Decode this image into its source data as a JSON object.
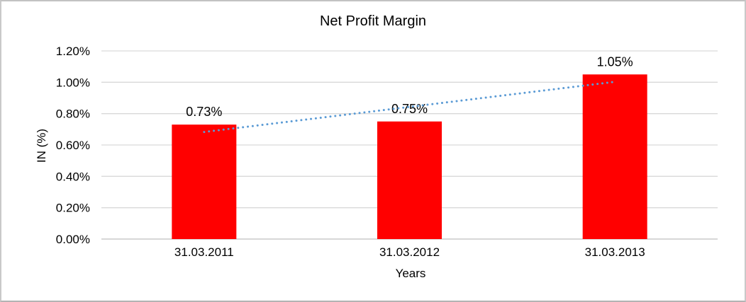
{
  "chart_data": {
    "type": "bar",
    "title": "Net Profit Margin",
    "xlabel": "Years",
    "ylabel": "IN (%)",
    "categories": [
      "31.03.2011",
      "31.03.2012",
      "31.03.2013"
    ],
    "values": [
      0.73,
      0.75,
      1.05
    ],
    "value_labels": [
      "0.73%",
      "0.75%",
      "1.05%"
    ],
    "ylim": [
      0,
      1.2
    ],
    "yticks": [
      {
        "value": 0.0,
        "label": "0.00%"
      },
      {
        "value": 0.2,
        "label": "0.20%"
      },
      {
        "value": 0.4,
        "label": "0.40%"
      },
      {
        "value": 0.6,
        "label": "0.60%"
      },
      {
        "value": 0.8,
        "label": "0.80%"
      },
      {
        "value": 1.0,
        "label": "1.00%"
      },
      {
        "value": 1.2,
        "label": "1.20%"
      }
    ],
    "grid": true,
    "legend": "none",
    "bar_color": "#ff0000",
    "grid_color": "#d9d9d9",
    "axis_line_color": "#bfbfbf",
    "text_color": "#000000",
    "trendline": {
      "type": "linear",
      "style": "dotted",
      "color": "#5b9bd5",
      "start_value": 0.683,
      "end_value": 1.003
    }
  }
}
